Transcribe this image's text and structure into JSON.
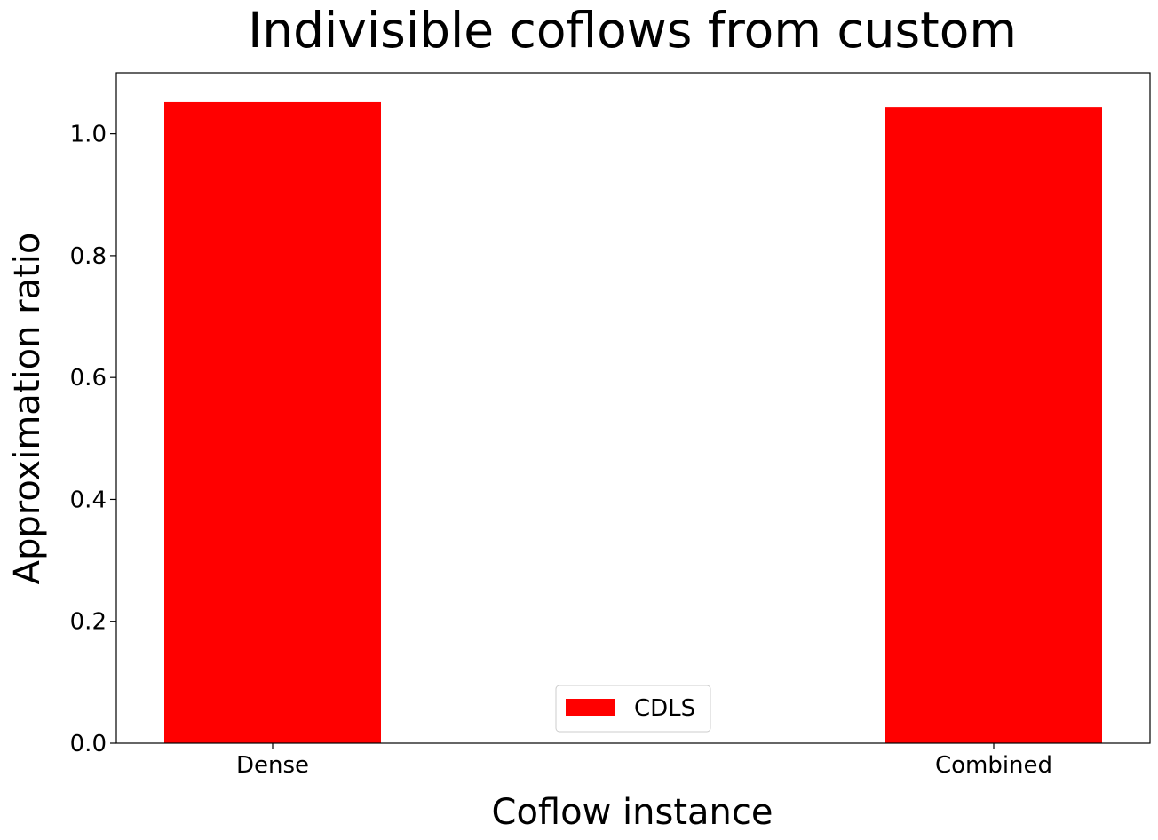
{
  "chart_data": {
    "type": "bar",
    "title": "Indivisible coflows from custom",
    "xlabel": "Coflow instance",
    "ylabel": "Approximation ratio",
    "categories": [
      "Dense",
      "Combined"
    ],
    "series": [
      {
        "name": "CDLS",
        "values": [
          1.052,
          1.043
        ],
        "color": "#ff0000"
      }
    ],
    "ylim": [
      0,
      1.1
    ],
    "yticks": [
      "0.0",
      "0.2",
      "0.4",
      "0.6",
      "0.8",
      "1.0"
    ],
    "ytick_values": [
      0.0,
      0.2,
      0.4,
      0.6,
      0.8,
      1.0
    ],
    "grid": false,
    "legend_position": "bottom-center"
  }
}
